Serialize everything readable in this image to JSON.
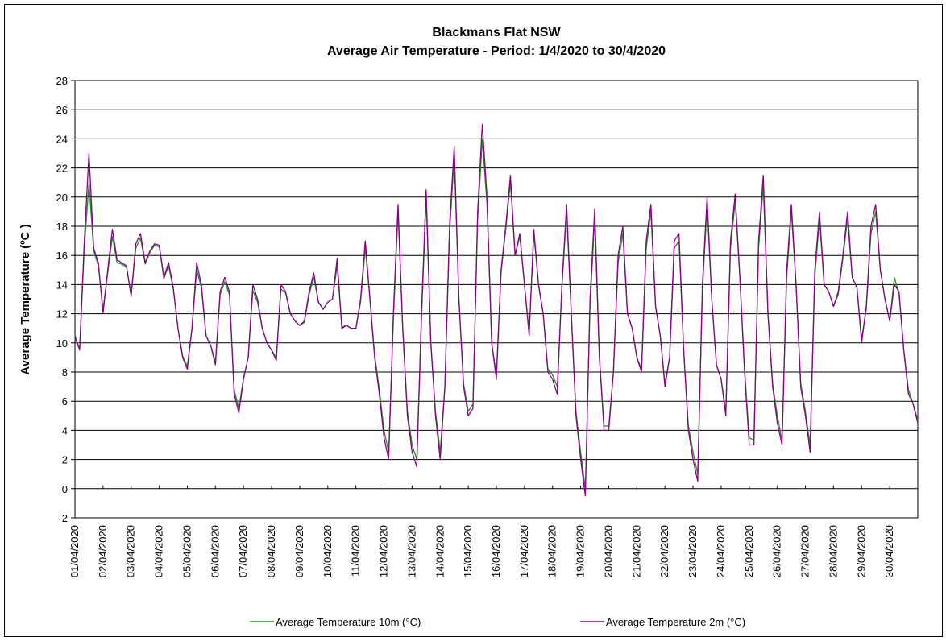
{
  "chart_data": {
    "type": "line",
    "title": "Blackmans Flat NSW",
    "subtitle": "Average Air  Temperature - Period: 1/4/2020 to 30/4/2020",
    "y_label": "Average Temperature (ºC )",
    "grid": true,
    "legend": "bottom",
    "xlim": [
      0,
      720
    ],
    "xticks": [
      {
        "value": 0,
        "label": "01/04/2020"
      },
      {
        "value": 24,
        "label": "02/04/2020"
      },
      {
        "value": 48,
        "label": "03/04/2020"
      },
      {
        "value": 72,
        "label": "04/04/2020"
      },
      {
        "value": 96,
        "label": "05/04/2020"
      },
      {
        "value": 120,
        "label": "06/04/2020"
      },
      {
        "value": 144,
        "label": "07/04/2020"
      },
      {
        "value": 168,
        "label": "08/04/2020"
      },
      {
        "value": 192,
        "label": "09/04/2020"
      },
      {
        "value": 216,
        "label": "10/04/2020"
      },
      {
        "value": 240,
        "label": "11/04/2020"
      },
      {
        "value": 264,
        "label": "12/04/2020"
      },
      {
        "value": 288,
        "label": "13/04/2020"
      },
      {
        "value": 312,
        "label": "14/04/2020"
      },
      {
        "value": 336,
        "label": "15/04/2020"
      },
      {
        "value": 360,
        "label": "16/04/2020"
      },
      {
        "value": 384,
        "label": "17/04/2020"
      },
      {
        "value": 408,
        "label": "18/04/2020"
      },
      {
        "value": 432,
        "label": "19/04/2020"
      },
      {
        "value": 456,
        "label": "20/04/2020"
      },
      {
        "value": 480,
        "label": "21/04/2020"
      },
      {
        "value": 504,
        "label": "22/04/2020"
      },
      {
        "value": 528,
        "label": "23/04/2020"
      },
      {
        "value": 552,
        "label": "24/04/2020"
      },
      {
        "value": 576,
        "label": "25/04/2020"
      },
      {
        "value": 600,
        "label": "26/04/2020"
      },
      {
        "value": 624,
        "label": "27/04/2020"
      },
      {
        "value": 648,
        "label": "28/04/2020"
      },
      {
        "value": 672,
        "label": "29/04/2020"
      },
      {
        "value": 696,
        "label": "30/04/2020"
      }
    ],
    "ylim": [
      -2,
      28
    ],
    "yticks": [
      -2,
      0,
      2,
      4,
      6,
      8,
      10,
      12,
      14,
      16,
      18,
      20,
      22,
      24,
      26,
      28
    ],
    "x": [
      0,
      4,
      8,
      12,
      16,
      20,
      24,
      28,
      32,
      36,
      40,
      44,
      48,
      52,
      56,
      60,
      64,
      68,
      72,
      76,
      80,
      84,
      88,
      92,
      96,
      100,
      104,
      108,
      112,
      116,
      120,
      124,
      128,
      132,
      136,
      140,
      144,
      148,
      152,
      156,
      160,
      164,
      168,
      172,
      176,
      180,
      184,
      188,
      192,
      196,
      200,
      204,
      208,
      212,
      216,
      220,
      224,
      228,
      232,
      236,
      240,
      244,
      248,
      252,
      256,
      260,
      264,
      268,
      272,
      276,
      280,
      284,
      288,
      292,
      296,
      300,
      304,
      308,
      312,
      316,
      320,
      324,
      328,
      332,
      336,
      340,
      344,
      348,
      352,
      356,
      360,
      364,
      368,
      372,
      376,
      380,
      384,
      388,
      392,
      396,
      400,
      404,
      408,
      412,
      416,
      420,
      424,
      428,
      432,
      436,
      440,
      444,
      448,
      452,
      456,
      460,
      464,
      468,
      472,
      476,
      480,
      484,
      488,
      492,
      496,
      500,
      504,
      508,
      512,
      516,
      520,
      524,
      528,
      532,
      536,
      540,
      544,
      548,
      552,
      556,
      560,
      564,
      568,
      572,
      576,
      580,
      584,
      588,
      592,
      596,
      600,
      604,
      608,
      612,
      616,
      620,
      624,
      628,
      632,
      636,
      640,
      644,
      648,
      652,
      656,
      660,
      664,
      668,
      672,
      676,
      680,
      684,
      688,
      692,
      696,
      700,
      704,
      708,
      712,
      716,
      720
    ],
    "series": [
      {
        "name": "Average Temperature 10m (°C)",
        "color": "#1f8f1f",
        "values": [
          10.3,
          9.6,
          16.5,
          21,
          16.3,
          15.3,
          12.3,
          14.8,
          17.3,
          15.5,
          15.4,
          15.2,
          13.3,
          16.5,
          17.2,
          15.4,
          16.2,
          16.7,
          16.6,
          14.4,
          15.3,
          13.7,
          11,
          9.1,
          8.4,
          11,
          15,
          13.8,
          10.5,
          9.8,
          8.7,
          13.3,
          14.2,
          13.3,
          6.8,
          5.5,
          7.6,
          9,
          13.6,
          12.8,
          11,
          10,
          9.5,
          9,
          13.7,
          13.4,
          12,
          11.5,
          11.2,
          11.4,
          13.3,
          14.5,
          12.8,
          12.3,
          12.8,
          13,
          15.3,
          11.1,
          11.2,
          11,
          11,
          12.8,
          16.5,
          13,
          9.2,
          6.8,
          4,
          2.5,
          11.5,
          19,
          11,
          5.3,
          3,
          2,
          11.5,
          20,
          10,
          5.3,
          2.5,
          7,
          17.5,
          22.8,
          13,
          7.2,
          5.3,
          5.8,
          18.5,
          24,
          19.5,
          10,
          7.8,
          14.8,
          17.8,
          21,
          16,
          17.3,
          14,
          10.7,
          17.5,
          14,
          12,
          8.2,
          7.8,
          7,
          13.8,
          19,
          12,
          5.3,
          2.5,
          0,
          12.5,
          18.5,
          9,
          4.3,
          4.3,
          8,
          15.5,
          17.5,
          12,
          11,
          9,
          8.2,
          16.5,
          19,
          12.5,
          10.5,
          7.2,
          9,
          16.5,
          17,
          9.5,
          4.3,
          2.5,
          1,
          13.5,
          19.5,
          13,
          8.5,
          7.5,
          5.3,
          16.5,
          19.7,
          14.5,
          8.2,
          3.5,
          3.3,
          16.5,
          20.8,
          12,
          7.2,
          5,
          3.3,
          14.5,
          19,
          14,
          7.2,
          5.3,
          3,
          14.5,
          18.5,
          14,
          13.5,
          12.5,
          13.3,
          15.8,
          18.5,
          14.5,
          13.8,
          10.3,
          12.3,
          17.5,
          19,
          15,
          13,
          11.5,
          14.5,
          13.3,
          9.5,
          6.8,
          5.8,
          4.7
        ]
      },
      {
        "name": "Average Temperature 2m (°C)",
        "color": "#8b008b",
        "values": [
          10.5,
          9.5,
          17,
          23,
          16.5,
          15.5,
          12,
          15,
          17.8,
          15.7,
          15.5,
          15.3,
          13.2,
          16.8,
          17.5,
          15.5,
          16.3,
          16.8,
          16.7,
          14.5,
          15.5,
          13.8,
          11,
          9,
          8.2,
          11,
          15.5,
          14,
          10.5,
          9.8,
          8.5,
          13.5,
          14.5,
          13.5,
          6.5,
          5.2,
          7.5,
          9,
          14,
          13,
          11,
          10,
          9.5,
          8.8,
          14,
          13.5,
          12,
          11.5,
          11.2,
          11.5,
          13.5,
          14.8,
          12.8,
          12.3,
          12.8,
          13,
          15.8,
          11,
          11.2,
          11,
          11,
          13,
          17,
          13,
          9,
          6.5,
          3.5,
          2,
          12,
          19.5,
          11,
          5,
          2.5,
          1.5,
          12,
          20.5,
          10,
          5,
          2,
          7,
          18,
          23.5,
          13,
          7,
          5,
          5.5,
          19,
          25,
          20,
          10,
          7.5,
          15,
          18,
          21.5,
          16,
          17.5,
          14,
          10.5,
          17.8,
          14,
          12,
          8,
          7.5,
          6.5,
          14,
          19.5,
          12,
          5,
          2,
          -0.5,
          13,
          19.2,
          9,
          4,
          4,
          8,
          16,
          18,
          12,
          11,
          9,
          8,
          17,
          19.5,
          12.5,
          10.5,
          7,
          9,
          17,
          17.5,
          9.5,
          4,
          2,
          0.5,
          14,
          20,
          13,
          8.5,
          7.5,
          5,
          17,
          20.2,
          14.5,
          8,
          3,
          3,
          17,
          21.5,
          12,
          7,
          4.5,
          3,
          15,
          19.5,
          14,
          7,
          5,
          2.5,
          15,
          19,
          14,
          13.5,
          12.5,
          13.5,
          16,
          19,
          14.5,
          13.8,
          10,
          12.5,
          18,
          19.5,
          15,
          13,
          11.5,
          14,
          13.5,
          9.5,
          6.5,
          5.8,
          4.5
        ]
      }
    ]
  }
}
